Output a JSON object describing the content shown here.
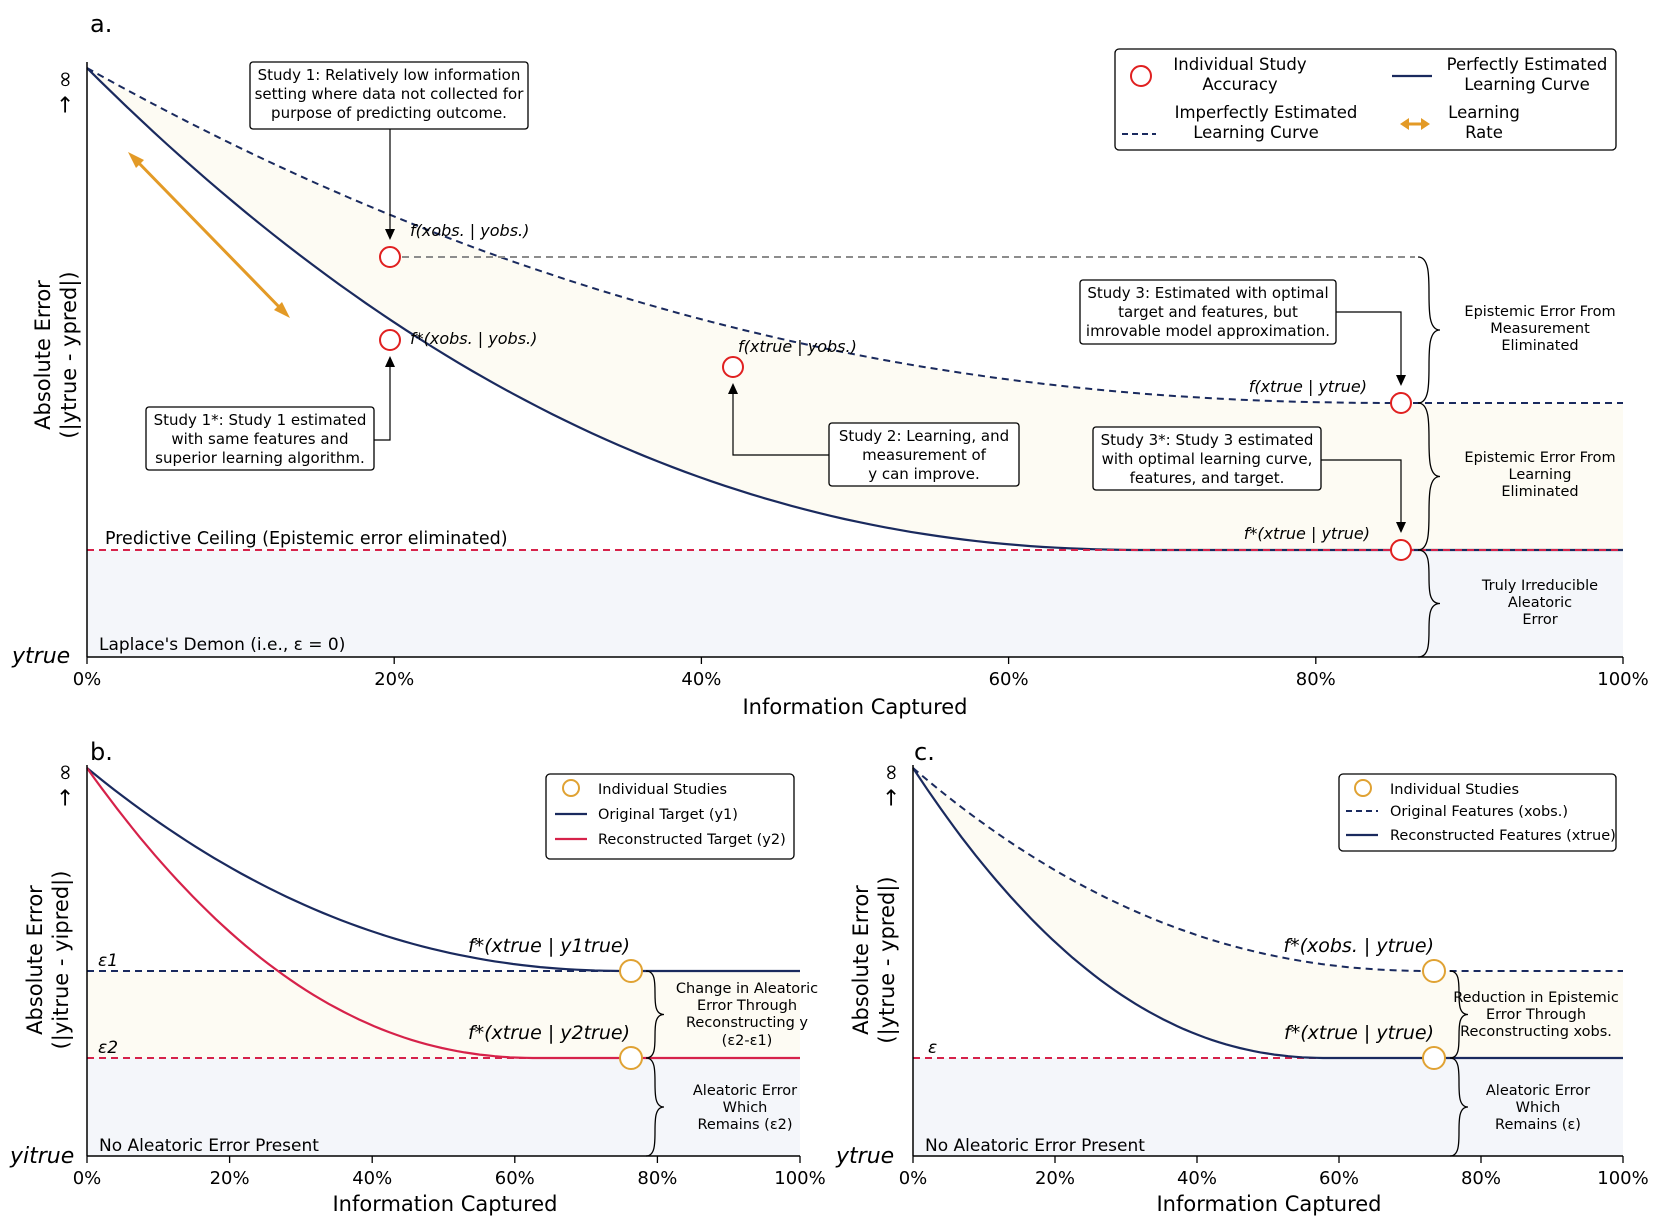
{
  "colors": {
    "navy": "#1a2a5e",
    "red": "#d6224a",
    "gray": "#8c8c8c",
    "orange": "#e39a26",
    "ochre": "#e0a233",
    "epistemic_fill": "#fdfbf3",
    "aleatoric_fill": "#f4f6fa",
    "marker_red": "#e02020"
  },
  "panel_a": {
    "label": "a.",
    "xlabel": "Information Captured",
    "ylabel_line1": "Absolute Error",
    "ylabel_line2": "(|ytrue - ypred|)",
    "y_top": "→ ∞",
    "y_bottom": "ytrue",
    "xticks": [
      "0%",
      "20%",
      "40%",
      "60%",
      "80%",
      "100%"
    ],
    "ceiling_label": "Predictive Ceiling (Epistemic error eliminated)",
    "demon_label": "Laplace's Demon (i.e., ε = 0)",
    "legend": {
      "study": "Individual Study Accuracy",
      "perfect": "Perfectly Estimated Learning Curve",
      "imperfect": "Imperfectly Estimated Learning Curve",
      "rate": "Learning Rate"
    },
    "point_labels": {
      "p1": "f(xobs. | yobs.)",
      "p1s": "f*(xobs. | yobs.)",
      "p2": "f(xtrue | yobs.)",
      "p3": "f(xtrue | ytrue)",
      "p3s": "f*(xtrue | ytrue)"
    },
    "boxes": {
      "study1": [
        "Study 1: Relatively low information",
        "setting where data not collected for",
        "purpose of predicting outcome."
      ],
      "study1s": [
        "Study 1*: Study 1 estimated",
        "with same features and",
        "superior learning algorithm."
      ],
      "study2": [
        "Study 2: Learning, and",
        "measurement of",
        "y can improve."
      ],
      "study3": [
        "Study 3: Estimated with optimal",
        "target and features, but",
        "imrovable model approximation."
      ],
      "study3s": [
        "Study 3*: Study 3 estimated",
        "with optimal learning curve,",
        "features, and target."
      ]
    },
    "braces": {
      "measurement": [
        "Epistemic Error From",
        "Measurement",
        "Eliminated"
      ],
      "learning": [
        "Epistemic Error From",
        "Learning",
        "Eliminated"
      ],
      "aleatoric": [
        "Truly Irreducible",
        "Aleatoric",
        "Error"
      ]
    }
  },
  "panel_b": {
    "label": "b.",
    "xlabel": "Information Captured",
    "ylabel_line1": "Absolute Error",
    "ylabel_line2": "(|yitrue - yipred|)",
    "y_top": "→ ∞",
    "y_bottom": "yitrue",
    "xticks": [
      "0%",
      "20%",
      "40%",
      "60%",
      "80%",
      "100%"
    ],
    "eps1": "ε1",
    "eps2": "ε2",
    "bottom_label": "No Aleatoric Error Present",
    "legend": {
      "studies": "Individual Studies",
      "original": "Original Target (y1)",
      "reconstructed": "Reconstructed Target (y2)"
    },
    "point_labels": {
      "top": "f*(xtrue | y1true)",
      "bottom": "f*(xtrue | y2true)"
    },
    "braces": {
      "change": [
        "Change in Aleatoric",
        "Error Through",
        "Reconstructing y",
        "(ε2-ε1)"
      ],
      "remains": [
        "Aleatoric Error",
        "Which",
        "Remains (ε2)"
      ]
    }
  },
  "panel_c": {
    "label": "c.",
    "xlabel": "Information Captured",
    "ylabel_line1": "Absolute Error",
    "ylabel_line2": "(|ytrue - ypred|)",
    "y_top": "→ ∞",
    "y_bottom": "ytrue",
    "xticks": [
      "0%",
      "20%",
      "40%",
      "60%",
      "80%",
      "100%"
    ],
    "eps": "ε",
    "bottom_label": "No Aleatoric Error Present",
    "legend": {
      "studies": "Individual Studies",
      "original": "Original Features (xobs.)",
      "reconstructed": "Reconstructed Features (xtrue)"
    },
    "point_labels": {
      "top": "f*(xobs. | ytrue)",
      "bottom": "f*(xtrue | ytrue)"
    },
    "braces": {
      "reduction": [
        "Reduction in Epistemic",
        "Error Through",
        "Reconstructing xobs."
      ],
      "remains": [
        "Aleatoric Error",
        "Which",
        "Remains (ε)"
      ]
    }
  }
}
